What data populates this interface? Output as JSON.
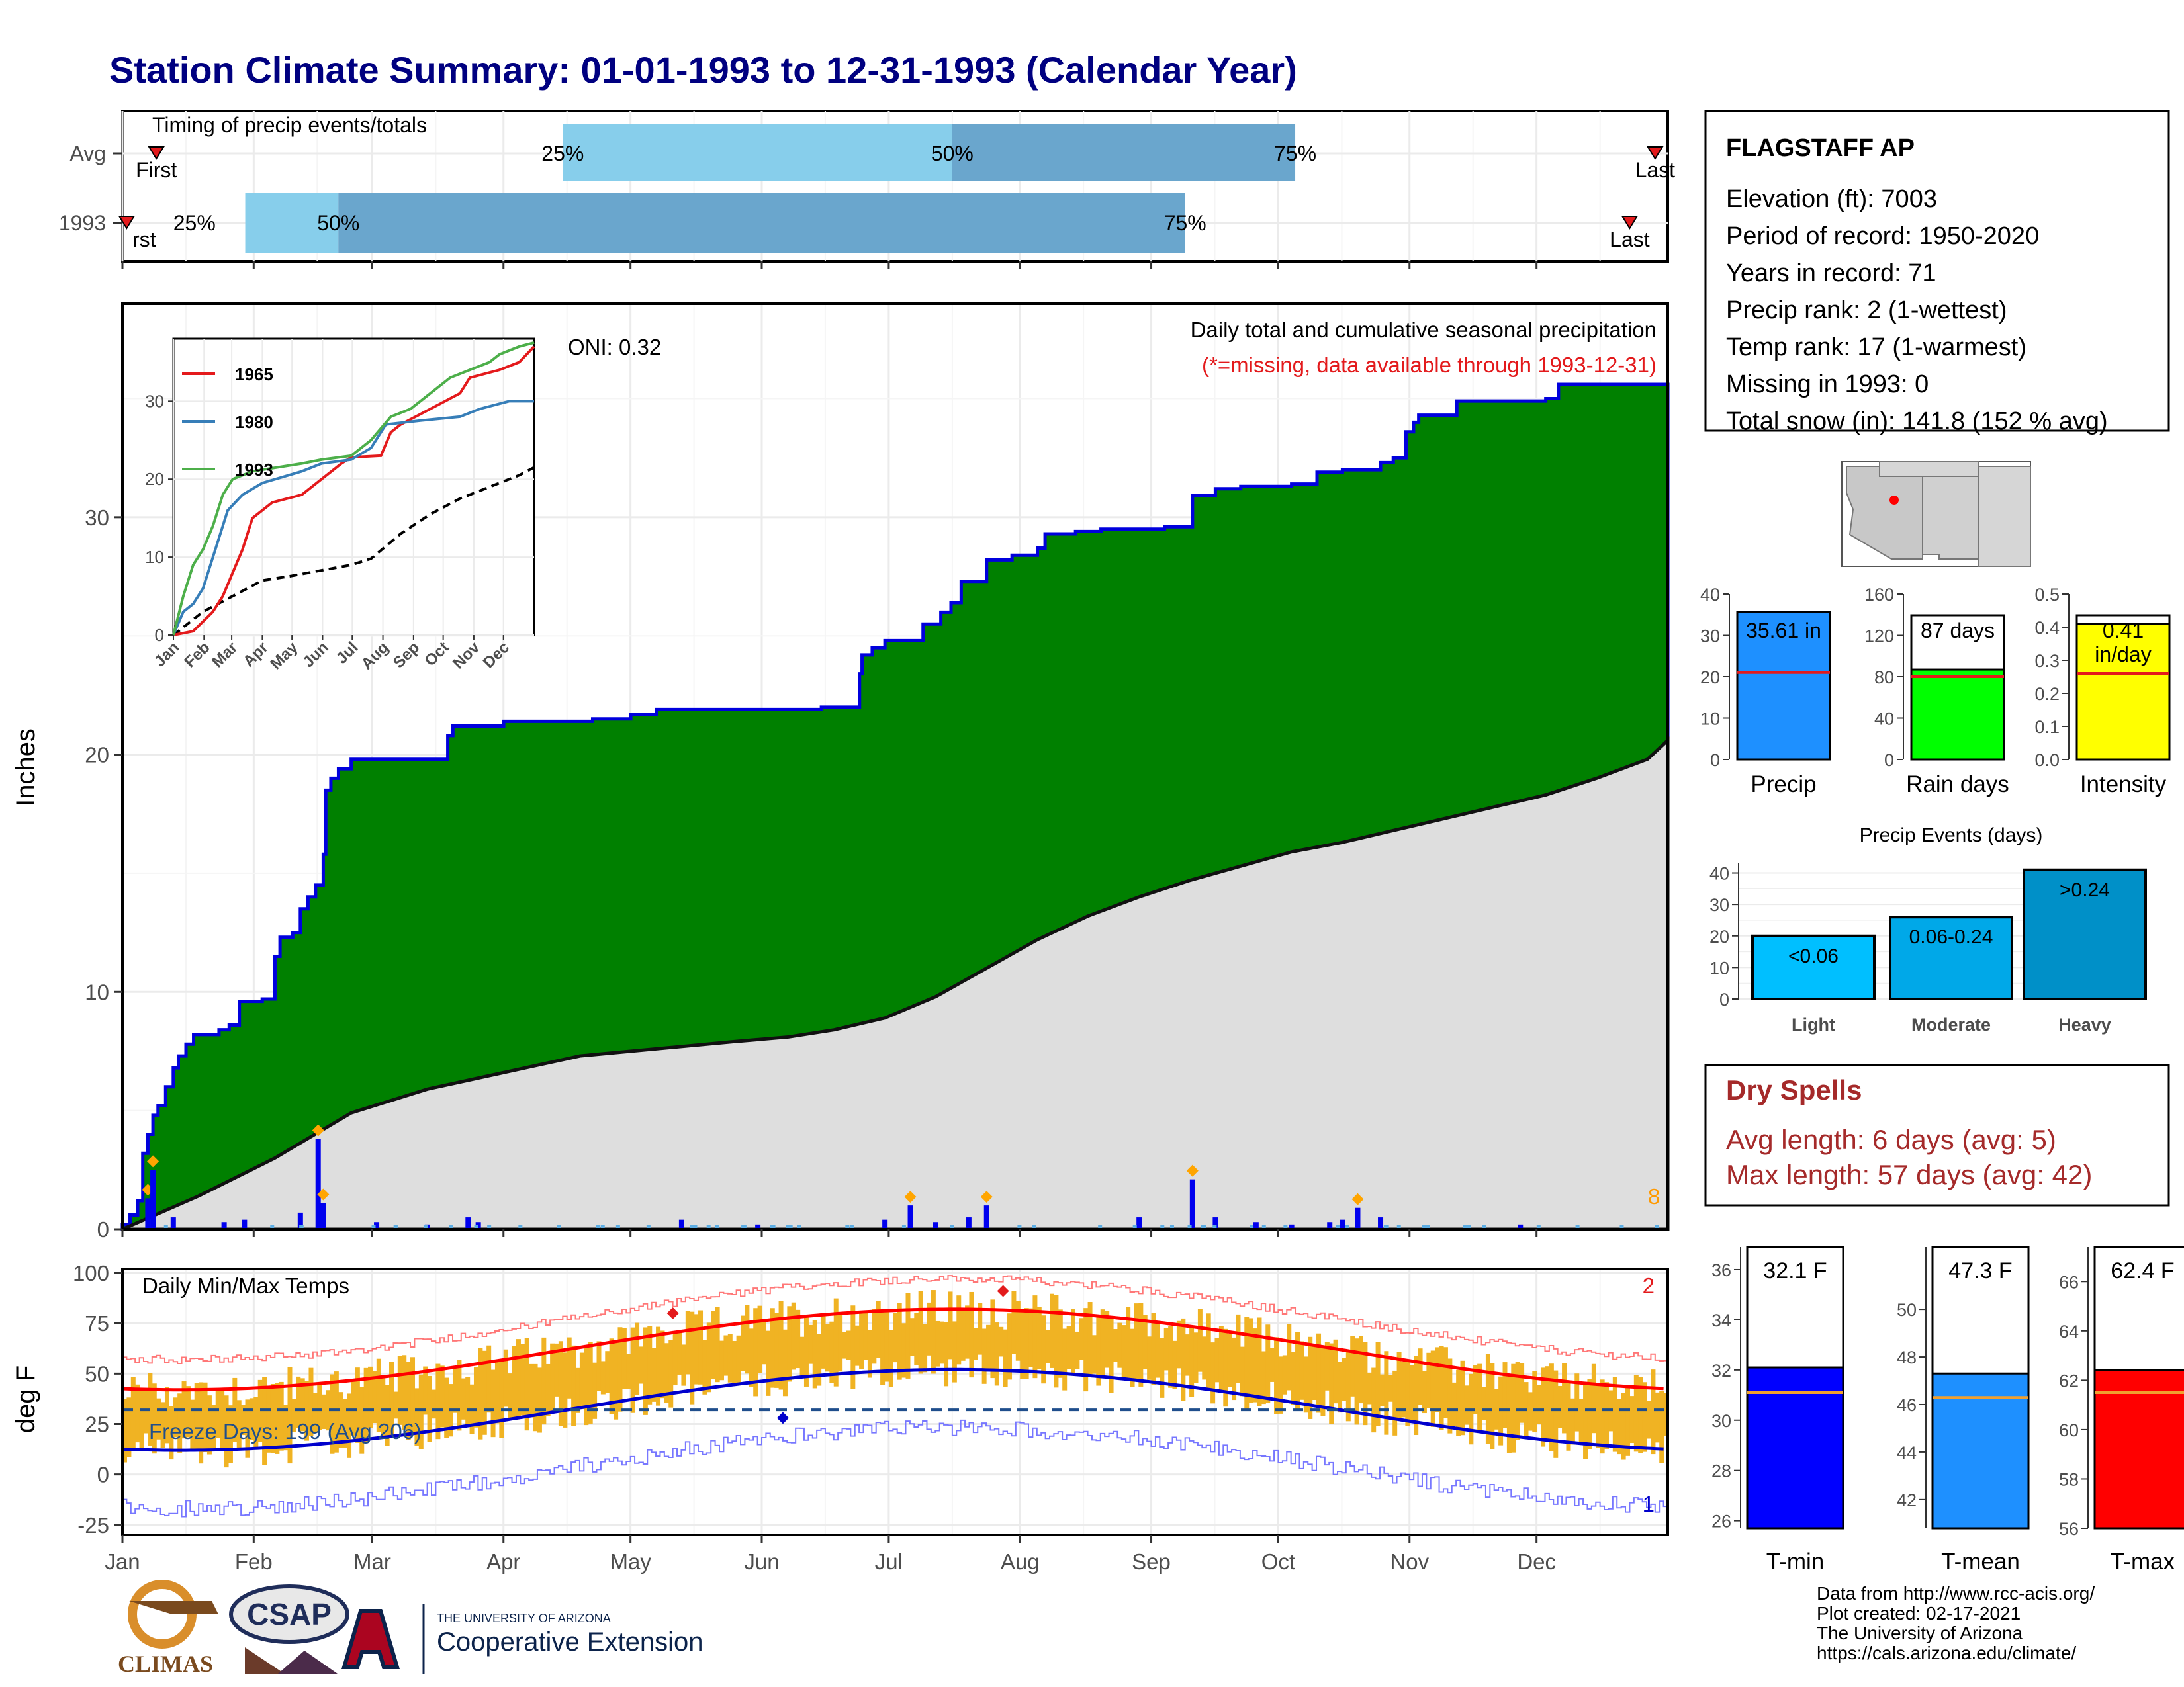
{
  "title": "Station Climate Summary: 01-01-1993 to 12-31-1993 (Calendar Year)",
  "months": [
    "Jan",
    "Feb",
    "Mar",
    "Apr",
    "May",
    "Jun",
    "Jul",
    "Aug",
    "Sep",
    "Oct",
    "Nov",
    "Dec"
  ],
  "timing_panel": {
    "label": "Timing of precip events/totals",
    "rows": [
      {
        "label": "Avg",
        "first_label": "First",
        "last_label": "Last",
        "first_doy": 8,
        "last_doy": 362,
        "q25": 104,
        "q50": 196,
        "q75": 277,
        "q25_label": "25%",
        "q50_label": "50%",
        "q75_label": "75%"
      },
      {
        "label": "1993",
        "first_label": "First",
        "last_label": "Last",
        "first_doy": 1,
        "last_doy": 356,
        "q25": 29,
        "q50": 51,
        "q75": 251,
        "q25_label": "25%",
        "q50_label": "50%",
        "q75_label": "75%"
      }
    ]
  },
  "precip_panel": {
    "ylabel": "Inches",
    "oni": "ONI: 0.32",
    "subtitle": "Daily total and cumulative seasonal precipitation",
    "missing_note": "(*=missing, data available through 1993-12-31)",
    "count_label": "8",
    "ylim": [
      0,
      39
    ],
    "yticks": [
      0,
      10,
      20,
      30
    ]
  },
  "inset": {
    "xticks": [
      "Jan",
      "Feb",
      "Mar",
      "Apr",
      "May",
      "Jun",
      "Jul",
      "Aug",
      "Sep",
      "Oct",
      "Nov",
      "Dec"
    ],
    "yticks": [
      0,
      10,
      20,
      30
    ],
    "legend": [
      {
        "name": "1965",
        "color": "#e41a1c"
      },
      {
        "name": "1980",
        "color": "#377eb8"
      },
      {
        "name": "1993",
        "color": "#4daf4a"
      }
    ]
  },
  "temp_panel": {
    "ylabel": "deg F",
    "label": "Daily Min/Max Temps",
    "freeze_label": "Freeze Days: 199 (Avg 206)",
    "record_high_count": "2",
    "record_low_count": "1",
    "ylim": [
      -30,
      102
    ],
    "yticks": [
      -25,
      0,
      25,
      50,
      75,
      100
    ]
  },
  "station": {
    "name": "FLAGSTAFF AP",
    "lines": [
      "Elevation (ft): 7003",
      "Period of record: 1950-2020",
      "Years in record: 71",
      "Precip rank: 2 (1-wettest)",
      "Temp rank: 17 (1-warmest)",
      "Missing in 1993: 0",
      "Total snow (in): 141.8 (152 % avg)"
    ]
  },
  "summary_bars": [
    {
      "label": "Precip",
      "value": 35.61,
      "avg": 21.0,
      "text": "35.61 in",
      "ymax": 40,
      "yticks": [
        0,
        10,
        20,
        30,
        40
      ],
      "color": "#1e90ff"
    },
    {
      "label": "Rain days",
      "value": 87,
      "avg": 80,
      "text": "87 days",
      "ymax": 160,
      "yticks": [
        0,
        40,
        80,
        120,
        160
      ],
      "color": "#00ff00"
    },
    {
      "label": "Intensity",
      "value": 0.41,
      "avg": 0.26,
      "text": "0.41",
      "text2": "in/day",
      "ymax": 0.5,
      "yticks": [
        "0.0",
        "0.1",
        "0.2",
        "0.3",
        "0.4",
        "0.5"
      ],
      "color": "#ffff00"
    }
  ],
  "events": {
    "title": "Precip Events (days)",
    "ymax": 42,
    "yticks": [
      0,
      10,
      20,
      30,
      40
    ],
    "bars": [
      {
        "label": "Light",
        "value": 20,
        "text": "<0.06",
        "color": "#00bfff"
      },
      {
        "label": "Moderate",
        "value": 26,
        "text": "0.06-0.24",
        "color": "#00a8e8"
      },
      {
        "label": "Heavy",
        "value": 41,
        "text": ">0.24",
        "color": "#0090c8"
      }
    ]
  },
  "dry_spells": {
    "title": "Dry Spells",
    "avg": "Avg length: 6 days (avg: 5)",
    "max": "Max length: 57 days (avg: 42)"
  },
  "temp_bars": [
    {
      "label": "T-min",
      "value": 32.1,
      "avg": 31.1,
      "text": "32.1 F",
      "ymin": 25.7,
      "ymax": 36.5,
      "yticks": [
        26,
        28,
        30,
        32,
        34,
        36
      ],
      "color": "#0000ff"
    },
    {
      "label": "T-mean",
      "value": 47.3,
      "avg": 46.3,
      "text": "47.3 F",
      "ymin": 40.8,
      "ymax": 52.2,
      "yticks": [
        42,
        44,
        46,
        48,
        50
      ],
      "color": "#1e90ff"
    },
    {
      "label": "T-max",
      "value": 62.4,
      "avg": 61.5,
      "text": "62.4 F",
      "ymin": 56,
      "ymax": 67,
      "yticks": [
        56,
        58,
        60,
        62,
        64,
        66
      ],
      "color": "#ff0000"
    }
  ],
  "credits": [
    "Data from http://www.rcc-acis.org/",
    "Plot created: 02-17-2021",
    "The University of Arizona",
    "https://cals.arizona.edu/climate/"
  ],
  "logos": {
    "climas": "CLIMAS",
    "csap": "CSAP",
    "ua_small": "THE UNIVERSITY OF ARIZONA",
    "ua_large": "Cooperative Extension"
  },
  "chart_data": {
    "type": "area",
    "title": "Station Climate Summary: 01-01-1993 to 12-31-1993 (Calendar Year)",
    "ylabel": "Inches",
    "ylim": [
      0,
      39
    ],
    "cumulative_1993": [
      [
        0,
        0.2
      ],
      [
        3,
        0.6
      ],
      [
        6,
        1.2
      ],
      [
        8,
        3.2
      ],
      [
        10,
        4.0
      ],
      [
        12,
        4.8
      ],
      [
        14,
        5.2
      ],
      [
        17,
        6.0
      ],
      [
        20,
        6.8
      ],
      [
        22,
        7.3
      ],
      [
        25,
        7.8
      ],
      [
        28,
        8.2
      ],
      [
        38,
        8.4
      ],
      [
        42,
        8.6
      ],
      [
        46,
        9.6
      ],
      [
        55,
        9.7
      ],
      [
        60,
        11.5
      ],
      [
        62,
        12.3
      ],
      [
        67,
        12.5
      ],
      [
        70,
        13.5
      ],
      [
        73,
        14.0
      ],
      [
        76,
        14.5
      ],
      [
        79,
        15.8
      ],
      [
        80,
        18.5
      ],
      [
        82,
        19.0
      ],
      [
        85,
        19.4
      ],
      [
        90,
        19.8
      ],
      [
        110,
        19.8
      ],
      [
        128,
        20.8
      ],
      [
        130,
        21.2
      ],
      [
        150,
        21.4
      ],
      [
        185,
        21.5
      ],
      [
        200,
        21.7
      ],
      [
        210,
        21.9
      ],
      [
        275,
        22.0
      ],
      [
        290,
        23.4
      ],
      [
        291,
        24.2
      ],
      [
        295,
        24.5
      ],
      [
        300,
        24.8
      ],
      [
        310,
        24.8
      ],
      [
        315,
        25.5
      ],
      [
        322,
        26.0
      ],
      [
        326,
        26.4
      ],
      [
        330,
        27.3
      ],
      [
        340,
        28.2
      ],
      [
        350,
        28.4
      ],
      [
        360,
        28.7
      ],
      [
        363,
        29.3
      ],
      [
        375,
        29.4
      ],
      [
        385,
        29.5
      ],
      [
        410,
        29.6
      ],
      [
        421,
        30.9
      ],
      [
        430,
        31.2
      ],
      [
        440,
        31.3
      ],
      [
        460,
        31.4
      ],
      [
        470,
        31.9
      ],
      [
        480,
        32.0
      ],
      [
        495,
        32.3
      ],
      [
        500,
        32.5
      ],
      [
        505,
        33.6
      ],
      [
        508,
        34.0
      ],
      [
        510,
        34.3
      ],
      [
        525,
        34.9
      ],
      [
        560,
        35.0
      ],
      [
        565,
        35.6
      ],
      [
        600,
        35.6
      ]
    ],
    "average_cumulative": [
      [
        0,
        0
      ],
      [
        30,
        1.4
      ],
      [
        60,
        3.0
      ],
      [
        90,
        4.9
      ],
      [
        120,
        5.9
      ],
      [
        150,
        6.6
      ],
      [
        180,
        7.3
      ],
      [
        210,
        7.6
      ],
      [
        240,
        7.9
      ],
      [
        262,
        8.1
      ],
      [
        280,
        8.4
      ],
      [
        300,
        8.9
      ],
      [
        320,
        9.8
      ],
      [
        340,
        11.0
      ],
      [
        360,
        12.2
      ],
      [
        380,
        13.2
      ],
      [
        400,
        14.0
      ],
      [
        420,
        14.7
      ],
      [
        440,
        15.3
      ],
      [
        460,
        15.9
      ],
      [
        480,
        16.3
      ],
      [
        500,
        16.8
      ],
      [
        520,
        17.3
      ],
      [
        540,
        17.8
      ],
      [
        560,
        18.3
      ],
      [
        580,
        19.0
      ],
      [
        600,
        19.8
      ],
      [
        608,
        20.6
      ]
    ],
    "daily_precip_spikes": [
      [
        10,
        1.3
      ],
      [
        12,
        2.5
      ],
      [
        20,
        0.5
      ],
      [
        40,
        0.3
      ],
      [
        48,
        0.4
      ],
      [
        70,
        0.7
      ],
      [
        77,
        3.8
      ],
      [
        79,
        1.1
      ],
      [
        100,
        0.3
      ],
      [
        120,
        0.2
      ],
      [
        136,
        0.5
      ],
      [
        140,
        0.3
      ],
      [
        220,
        0.4
      ],
      [
        250,
        0.2
      ],
      [
        300,
        0.4
      ],
      [
        310,
        1.0
      ],
      [
        320,
        0.3
      ],
      [
        333,
        0.5
      ],
      [
        340,
        1.0
      ],
      [
        400,
        0.5
      ],
      [
        421,
        2.1
      ],
      [
        430,
        0.5
      ],
      [
        446,
        0.3
      ],
      [
        460,
        0.2
      ],
      [
        475,
        0.3
      ],
      [
        480,
        0.4
      ],
      [
        486,
        0.9
      ],
      [
        495,
        0.5
      ],
      [
        550,
        0.2
      ]
    ],
    "x_axis": "day of year, 0-365 (Jan-Dec)",
    "note": "Cumulative values sampled in inches; x coordinates in day index"
  }
}
